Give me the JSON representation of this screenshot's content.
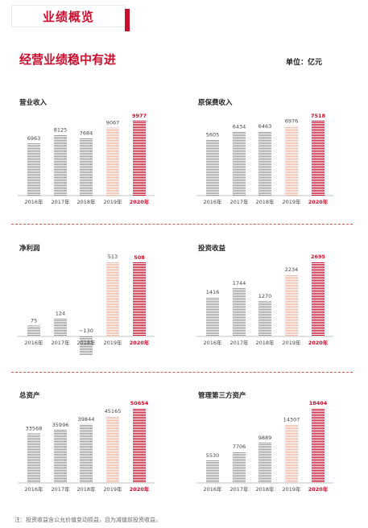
{
  "header": {
    "title": "业绩概览"
  },
  "page": {
    "title": "经营业绩稳中有进",
    "unit_label": "单位：亿元",
    "footnote": "注：投资收益含公允价值变动损益，且为减值前投资收益。"
  },
  "colors": {
    "accent": "#c8102e",
    "highlight_2019": "#f2b9a4",
    "base_bars": "#9a9a9a"
  },
  "chart_data": [
    {
      "type": "bar",
      "title": "营业收入",
      "categories": [
        "2016年",
        "2017年",
        "2018年",
        "2019年",
        "2020年"
      ],
      "values": [
        6963,
        8125,
        7684,
        9067,
        9977
      ]
    },
    {
      "type": "bar",
      "title": "原保费收入",
      "categories": [
        "2016年",
        "2017年",
        "2018年",
        "2019年",
        "2020年"
      ],
      "values": [
        5605,
        6434,
        6463,
        6976,
        7518
      ]
    },
    {
      "type": "bar",
      "title": "净利润",
      "categories": [
        "2016年",
        "2017年",
        "2018年",
        "2019年",
        "2020年"
      ],
      "values": [
        75,
        124,
        -130,
        513,
        508
      ]
    },
    {
      "type": "bar",
      "title": "投资收益",
      "categories": [
        "2016年",
        "2017年",
        "2018年",
        "2019年",
        "2020年"
      ],
      "values": [
        1416,
        1744,
        1270,
        2234,
        2695
      ]
    },
    {
      "type": "bar",
      "title": "总资产",
      "categories": [
        "2016年",
        "2017年",
        "2018年",
        "2019年",
        "2020年"
      ],
      "values": [
        33568,
        35996,
        39844,
        45165,
        50654
      ]
    },
    {
      "type": "bar",
      "title": "管理第三方资产",
      "categories": [
        "2016年",
        "2017年",
        "2018年",
        "2019年",
        "2020年"
      ],
      "values": [
        5530,
        7706,
        9889,
        14307,
        18404
      ]
    }
  ]
}
